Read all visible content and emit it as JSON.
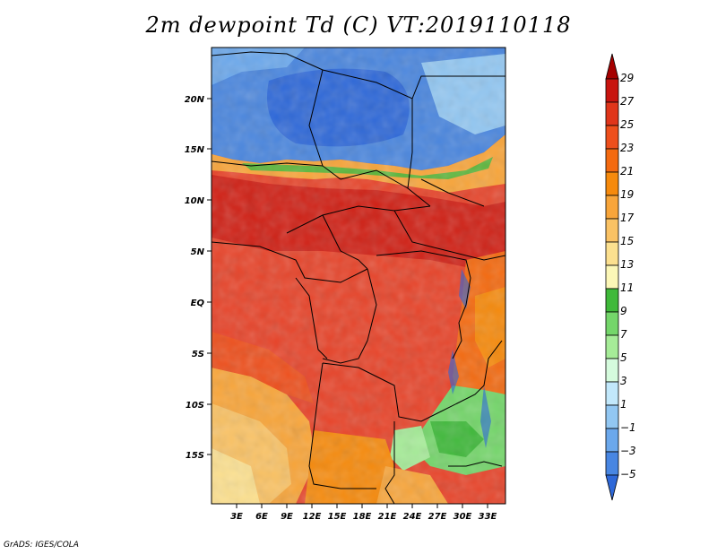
{
  "title": "2m dewpoint Td (C) VT:2019110118",
  "credit": "GrADS: IGES/COLA",
  "map": {
    "lat_labels": [
      "20N",
      "15N",
      "10N",
      "5N",
      "EQ",
      "5S",
      "10S",
      "15S"
    ],
    "lon_labels": [
      "3E",
      "6E",
      "9E",
      "12E",
      "15E",
      "18E",
      "21E",
      "24E",
      "27E",
      "30E",
      "33E"
    ],
    "field_description": "2 m dewpoint temperature over Central Africa"
  },
  "colorbar": {
    "labels": [
      "29",
      "27",
      "25",
      "23",
      "21",
      "19",
      "17",
      "15",
      "13",
      "11",
      "9",
      "7",
      "5",
      "3",
      "1",
      "−1",
      "−3",
      "−5"
    ],
    "colors": [
      "#a50000",
      "#c8140f",
      "#e0351a",
      "#ee4f1c",
      "#f46a10",
      "#f68a0c",
      "#f8a53a",
      "#fac264",
      "#fce08f",
      "#fcf7b7",
      "#3fb93a",
      "#74d66a",
      "#a6ec98",
      "#d5fbdd",
      "#c2e8fb",
      "#92c7f2",
      "#6ba8ec",
      "#4886e2",
      "#2e68d8"
    ]
  }
}
